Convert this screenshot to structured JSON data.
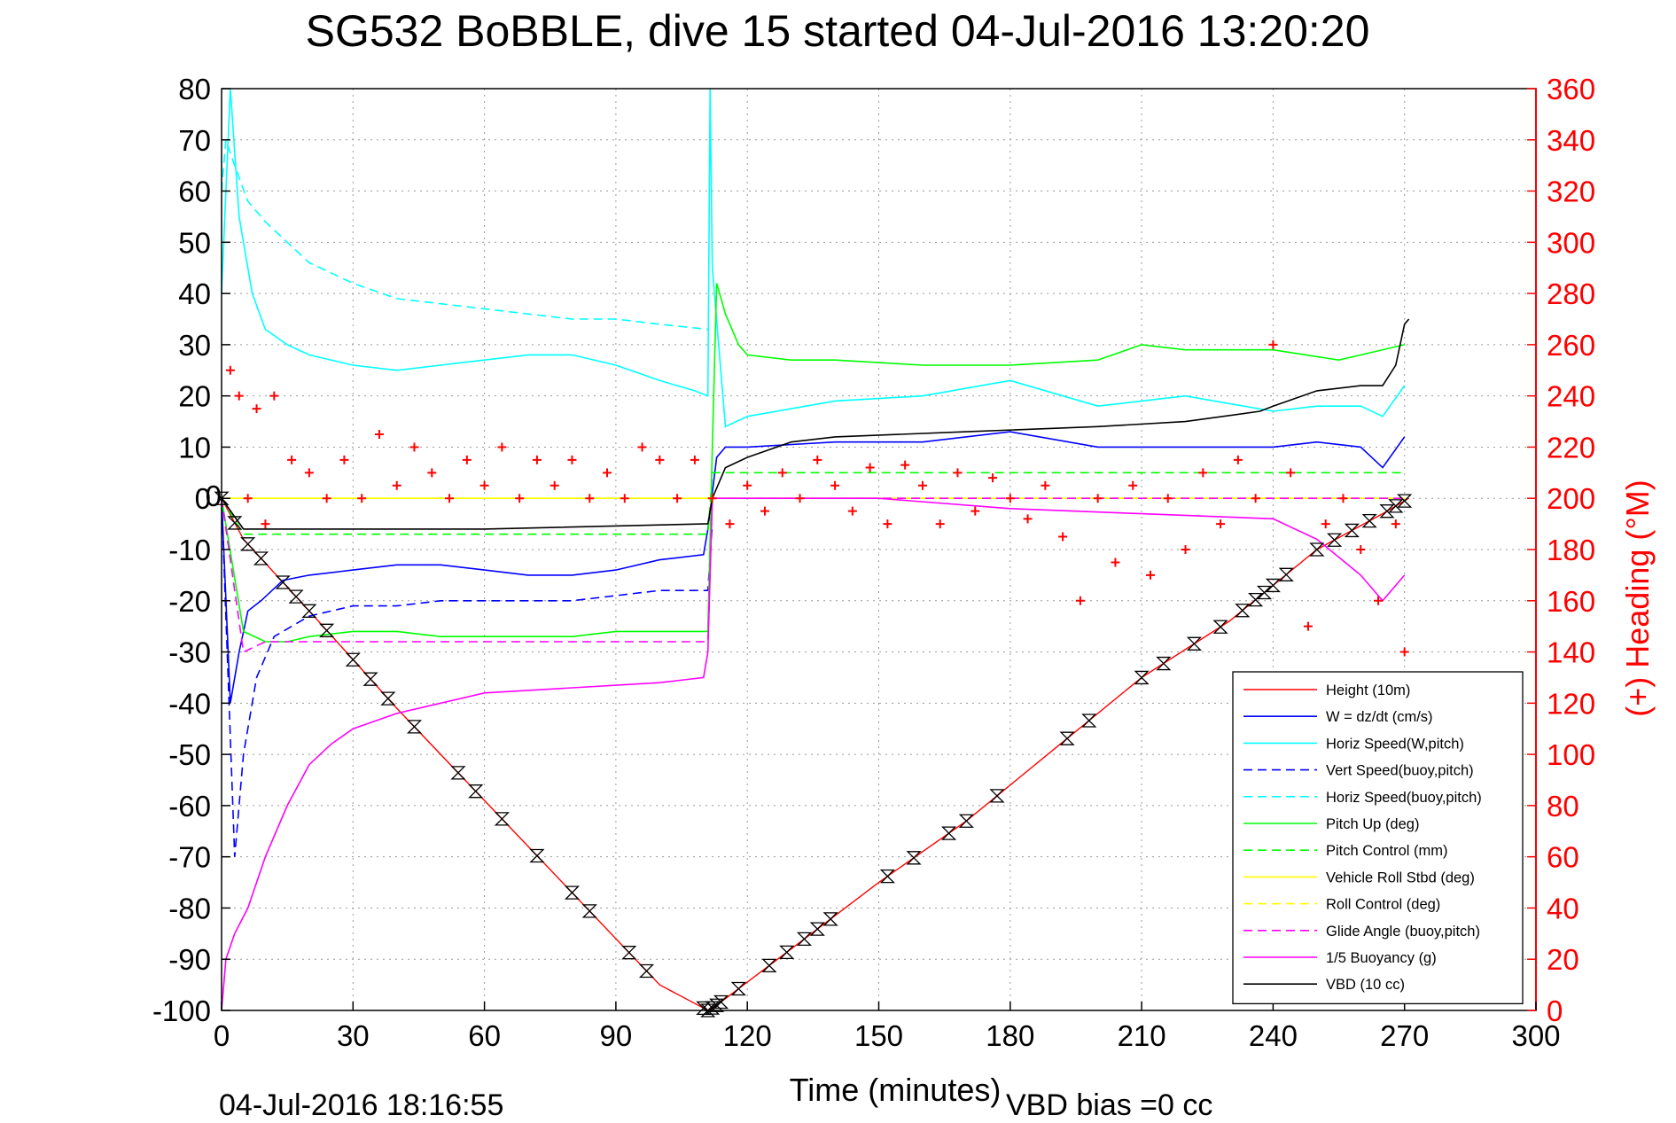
{
  "title": "SG532 BoBBLE, dive 15 started 04-Jul-2016 13:20:20",
  "footer": {
    "timestamp": "04-Jul-2016 18:16:55",
    "vbd_bias": "VBD bias =0 cc"
  },
  "colors": {
    "height": "#ff0000",
    "w": "#0000ff",
    "horiz_speed": "#00ffff",
    "pitch": "#00ff00",
    "roll": "#ffff00",
    "glide": "#ff00ff",
    "vbd": "#000000",
    "heading": "#ff0000"
  },
  "chart_data": {
    "type": "line",
    "xlabel": "Time (minutes)",
    "ylabel": "",
    "y2label": "(+) Heading (°M)",
    "xlim": [
      0,
      300
    ],
    "ylim": [
      -100,
      80
    ],
    "y2lim": [
      0,
      360
    ],
    "xticks": [
      0,
      30,
      60,
      90,
      120,
      150,
      180,
      210,
      240,
      270,
      300
    ],
    "yticks": [
      -100,
      -90,
      -80,
      -70,
      -60,
      -50,
      -40,
      -30,
      -20,
      -10,
      0,
      10,
      20,
      30,
      40,
      50,
      60,
      70,
      80
    ],
    "y2ticks": [
      0,
      20,
      40,
      60,
      80,
      100,
      120,
      140,
      160,
      180,
      200,
      220,
      240,
      260,
      280,
      300,
      320,
      340,
      360
    ],
    "grid": true,
    "legend_position": "bottom-right",
    "zero_marker_label": "0",
    "series": [
      {
        "name": "Height (10m)",
        "key": "height",
        "style": "solid",
        "color": "#ff0000",
        "x": [
          0,
          5,
          20,
          40,
          60,
          80,
          100,
          111,
          113,
          130,
          150,
          170,
          190,
          210,
          230,
          250,
          265,
          271
        ],
        "y": [
          0,
          -8,
          -22,
          -41,
          -59,
          -77,
          -95,
          -100,
          -99,
          -88,
          -75,
          -63,
          -49,
          -35,
          -24,
          -10,
          -3,
          0
        ]
      },
      {
        "name": "W = dz/dt (cm/s)",
        "key": "w",
        "style": "solid",
        "color": "#0000ff",
        "x": [
          0,
          2,
          4,
          6,
          9,
          14,
          20,
          30,
          40,
          50,
          60,
          70,
          80,
          90,
          100,
          110,
          111,
          113,
          115,
          120,
          140,
          160,
          180,
          200,
          220,
          240,
          250,
          260,
          265,
          270
        ],
        "y": [
          0,
          -40,
          -30,
          -22,
          -20,
          -16,
          -15,
          -14,
          -13,
          -13,
          -14,
          -15,
          -15,
          -14,
          -12,
          -11,
          -6,
          8,
          10,
          10,
          11,
          11,
          13,
          10,
          10,
          10,
          11,
          10,
          6,
          12
        ]
      },
      {
        "name": "Horiz Speed(W,pitch)",
        "key": "hs",
        "style": "solid",
        "color": "#00ffff",
        "x": [
          0,
          1,
          2,
          4,
          7,
          10,
          15,
          20,
          30,
          40,
          50,
          60,
          70,
          80,
          90,
          100,
          108,
          111,
          111.5,
          112,
          115,
          120,
          140,
          160,
          180,
          200,
          220,
          240,
          250,
          260,
          265,
          270
        ],
        "y": [
          40,
          60,
          80,
          55,
          40,
          33,
          30,
          28,
          26,
          25,
          26,
          27,
          28,
          28,
          26,
          23,
          21,
          20,
          80,
          45,
          14,
          16,
          19,
          20,
          23,
          18,
          20,
          17,
          18,
          18,
          16,
          22
        ]
      },
      {
        "name": "Vert Speed(buoy,pitch)",
        "key": "vs_buoy",
        "style": "dashed",
        "color": "#0000ff",
        "x": [
          0,
          3,
          5,
          8,
          12,
          20,
          30,
          40,
          50,
          60,
          70,
          80,
          90,
          100,
          111,
          112
        ],
        "y": [
          0,
          -70,
          -50,
          -35,
          -27,
          -23,
          -21,
          -21,
          -20,
          -20,
          -20,
          -20,
          -19,
          -18,
          -18,
          -5
        ]
      },
      {
        "name": "Horiz Speed(buoy,pitch)",
        "key": "hs_buoy",
        "style": "dashed",
        "color": "#00ffff",
        "x": [
          0,
          1,
          3,
          6,
          10,
          15,
          20,
          30,
          40,
          50,
          60,
          70,
          80,
          90,
          100,
          111
        ],
        "y": [
          60,
          70,
          65,
          58,
          54,
          50,
          46,
          42,
          39,
          38,
          37,
          36,
          35,
          35,
          34,
          33
        ]
      },
      {
        "name": "Pitch Up (deg)",
        "key": "pitch",
        "style": "solid",
        "color": "#00ff00",
        "x": [
          0,
          5,
          10,
          15,
          20,
          30,
          40,
          50,
          60,
          70,
          80,
          90,
          100,
          111,
          112,
          113,
          115,
          118,
          120,
          130,
          140,
          160,
          180,
          200,
          210,
          220,
          240,
          255,
          270
        ],
        "y": [
          0,
          -26,
          -28,
          -28,
          -27,
          -26,
          -26,
          -27,
          -27,
          -27,
          -27,
          -26,
          -26,
          -26,
          10,
          42,
          36,
          30,
          28,
          27,
          27,
          26,
          26,
          27,
          30,
          29,
          29,
          27,
          30
        ]
      },
      {
        "name": "Pitch Control (mm)",
        "key": "pitch_ctrl",
        "style": "dashed",
        "color": "#00ff00",
        "x": [
          0,
          5,
          10,
          30,
          60,
          90,
          111,
          112,
          120,
          160,
          200,
          240,
          270
        ],
        "y": [
          0,
          -7,
          -7,
          -7,
          -7,
          -7,
          -7,
          5,
          5,
          5,
          5,
          5,
          5
        ]
      },
      {
        "name": "Vehicle Roll Stbd (deg)",
        "key": "roll",
        "style": "solid",
        "color": "#ffff00",
        "x": [
          0,
          20,
          40,
          60,
          80,
          100,
          111,
          112,
          140,
          170,
          200,
          230,
          260,
          270
        ],
        "y": [
          0,
          0,
          0,
          0,
          0,
          0,
          0,
          0,
          0,
          0,
          0,
          0,
          0,
          0
        ]
      },
      {
        "name": "Roll Control (deg)",
        "key": "roll_ctrl",
        "style": "dashed",
        "color": "#ffff00",
        "x": [
          0,
          270
        ],
        "y": [
          0,
          0
        ]
      },
      {
        "name": "Glide Angle (buoy,pitch)",
        "key": "glide",
        "style": "dashed",
        "color": "#ff00ff",
        "x": [
          0,
          5,
          10,
          20,
          30,
          40,
          60,
          80,
          100,
          111,
          112,
          130,
          160,
          200,
          240,
          270
        ],
        "y": [
          0,
          -30,
          -28,
          -28,
          -28,
          -28,
          -28,
          -28,
          -28,
          -28,
          0,
          0,
          0,
          0,
          0,
          0
        ]
      },
      {
        "name": "1/5 Buoyancy (g)",
        "key": "buoyancy",
        "style": "solid",
        "color": "#ff00ff",
        "x": [
          0,
          1,
          3,
          6,
          10,
          15,
          20,
          25,
          30,
          40,
          50,
          60,
          80,
          100,
          110,
          111,
          112,
          120,
          150,
          180,
          210,
          240,
          250,
          260,
          265,
          270
        ],
        "y": [
          -100,
          -90,
          -85,
          -80,
          -70,
          -60,
          -52,
          -48,
          -45,
          -42,
          -40,
          -38,
          -37,
          -36,
          -35,
          -30,
          0,
          0,
          0,
          -2,
          -3,
          -4,
          -8,
          -15,
          -20,
          -15
        ]
      },
      {
        "name": "VBD (10 cc)",
        "key": "vbd",
        "style": "solid",
        "color": "#000000",
        "x": [
          0,
          5,
          10,
          60,
          110,
          111,
          112,
          115,
          120,
          130,
          140,
          170,
          200,
          220,
          237,
          240,
          250,
          260,
          265,
          268,
          270,
          271
        ],
        "y": [
          0,
          -6,
          -6,
          -6,
          -5,
          -5,
          0,
          6,
          8,
          11,
          12,
          13,
          14,
          15,
          17,
          18,
          21,
          22,
          22,
          26,
          34,
          35
        ]
      },
      {
        "name": "Heading",
        "key": "heading",
        "style": "markers",
        "color": "#ff0000",
        "axis": "y2",
        "x": [
          2,
          4,
          6,
          8,
          10,
          12,
          16,
          20,
          24,
          28,
          32,
          36,
          40,
          44,
          48,
          52,
          56,
          60,
          64,
          68,
          72,
          76,
          80,
          84,
          88,
          92,
          96,
          100,
          104,
          108,
          112,
          116,
          120,
          124,
          128,
          132,
          136,
          140,
          144,
          148,
          152,
          156,
          160,
          164,
          168,
          172,
          176,
          180,
          184,
          188,
          192,
          196,
          200,
          204,
          208,
          212,
          216,
          220,
          224,
          228,
          232,
          236,
          240,
          244,
          248,
          252,
          256,
          260,
          264,
          268,
          270
        ],
        "y": [
          250,
          240,
          200,
          235,
          190,
          240,
          215,
          210,
          200,
          215,
          200,
          225,
          205,
          220,
          210,
          200,
          215,
          205,
          220,
          200,
          215,
          205,
          215,
          200,
          210,
          200,
          220,
          215,
          200,
          215,
          200,
          190,
          205,
          195,
          210,
          200,
          215,
          205,
          195,
          212,
          190,
          213,
          205,
          190,
          210,
          195,
          208,
          200,
          192,
          205,
          185,
          160,
          200,
          175,
          205,
          170,
          200,
          180,
          210,
          190,
          215,
          200,
          260,
          210,
          150,
          190,
          200,
          180,
          160,
          190,
          140
        ]
      }
    ],
    "dive_markers": {
      "symbol": "hourglass",
      "x": [
        0,
        3,
        6,
        9,
        14,
        17,
        20,
        24,
        30,
        34,
        38,
        44,
        54,
        58,
        64,
        72,
        80,
        84,
        93,
        97,
        110,
        111,
        112,
        113,
        114,
        118,
        125,
        129,
        133,
        136,
        139,
        152,
        158,
        166,
        170,
        177,
        193,
        198,
        210,
        215,
        222,
        228,
        233,
        236,
        238,
        240,
        243,
        250,
        254,
        258,
        262,
        266,
        268,
        270
      ]
    }
  }
}
